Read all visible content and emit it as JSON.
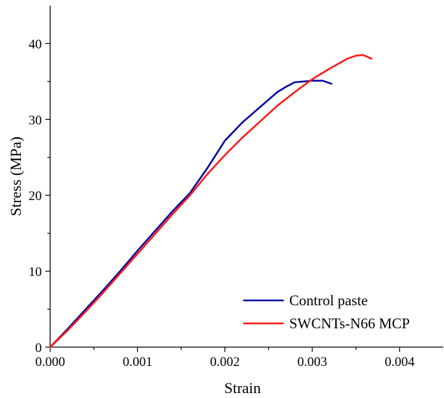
{
  "chart_data": {
    "type": "line",
    "title": "",
    "xlabel": "Strain",
    "ylabel": "Stress (MPa)",
    "xlim": [
      0,
      0.0045
    ],
    "ylim": [
      0,
      45
    ],
    "x_ticks": [
      0,
      0.001,
      0.002,
      0.003,
      0.004
    ],
    "x_tick_labels": [
      "0.000",
      "0.001",
      "0.002",
      "0.003",
      "0.004"
    ],
    "y_ticks": [
      0,
      10,
      20,
      30,
      40
    ],
    "y_tick_labels": [
      "0",
      "10",
      "20",
      "30",
      "40"
    ],
    "grid": false,
    "legend_position": "bottom-right",
    "series": [
      {
        "name": "Control paste",
        "color": "#0a0aa0",
        "points": [
          [
            0,
            0
          ],
          [
            0.0002,
            2.4
          ],
          [
            0.0004,
            4.9
          ],
          [
            0.0006,
            7.4
          ],
          [
            0.0008,
            10.0
          ],
          [
            0.001,
            12.7
          ],
          [
            0.0012,
            15.3
          ],
          [
            0.0014,
            17.9
          ],
          [
            0.0016,
            20.3
          ],
          [
            0.0018,
            23.6
          ],
          [
            0.002,
            27.2
          ],
          [
            0.0022,
            29.6
          ],
          [
            0.0024,
            31.6
          ],
          [
            0.0026,
            33.6
          ],
          [
            0.0027,
            34.3
          ],
          [
            0.0028,
            34.9
          ],
          [
            0.003,
            35.1
          ],
          [
            0.00312,
            35.1
          ],
          [
            0.00322,
            34.7
          ]
        ]
      },
      {
        "name": "SWCNTs-N66 MCP",
        "color": "#ff1a1a",
        "points": [
          [
            0,
            0
          ],
          [
            0.0002,
            2.2
          ],
          [
            0.0004,
            4.6
          ],
          [
            0.0006,
            7.1
          ],
          [
            0.0008,
            9.7
          ],
          [
            0.001,
            12.3
          ],
          [
            0.0012,
            14.9
          ],
          [
            0.0014,
            17.5
          ],
          [
            0.0016,
            20.0
          ],
          [
            0.0018,
            22.8
          ],
          [
            0.002,
            25.3
          ],
          [
            0.0022,
            27.6
          ],
          [
            0.0024,
            29.7
          ],
          [
            0.0026,
            31.8
          ],
          [
            0.0028,
            33.6
          ],
          [
            0.003,
            35.3
          ],
          [
            0.0032,
            36.7
          ],
          [
            0.0034,
            38.0
          ],
          [
            0.0035,
            38.4
          ],
          [
            0.00358,
            38.5
          ],
          [
            0.00368,
            38.0
          ]
        ]
      }
    ]
  }
}
